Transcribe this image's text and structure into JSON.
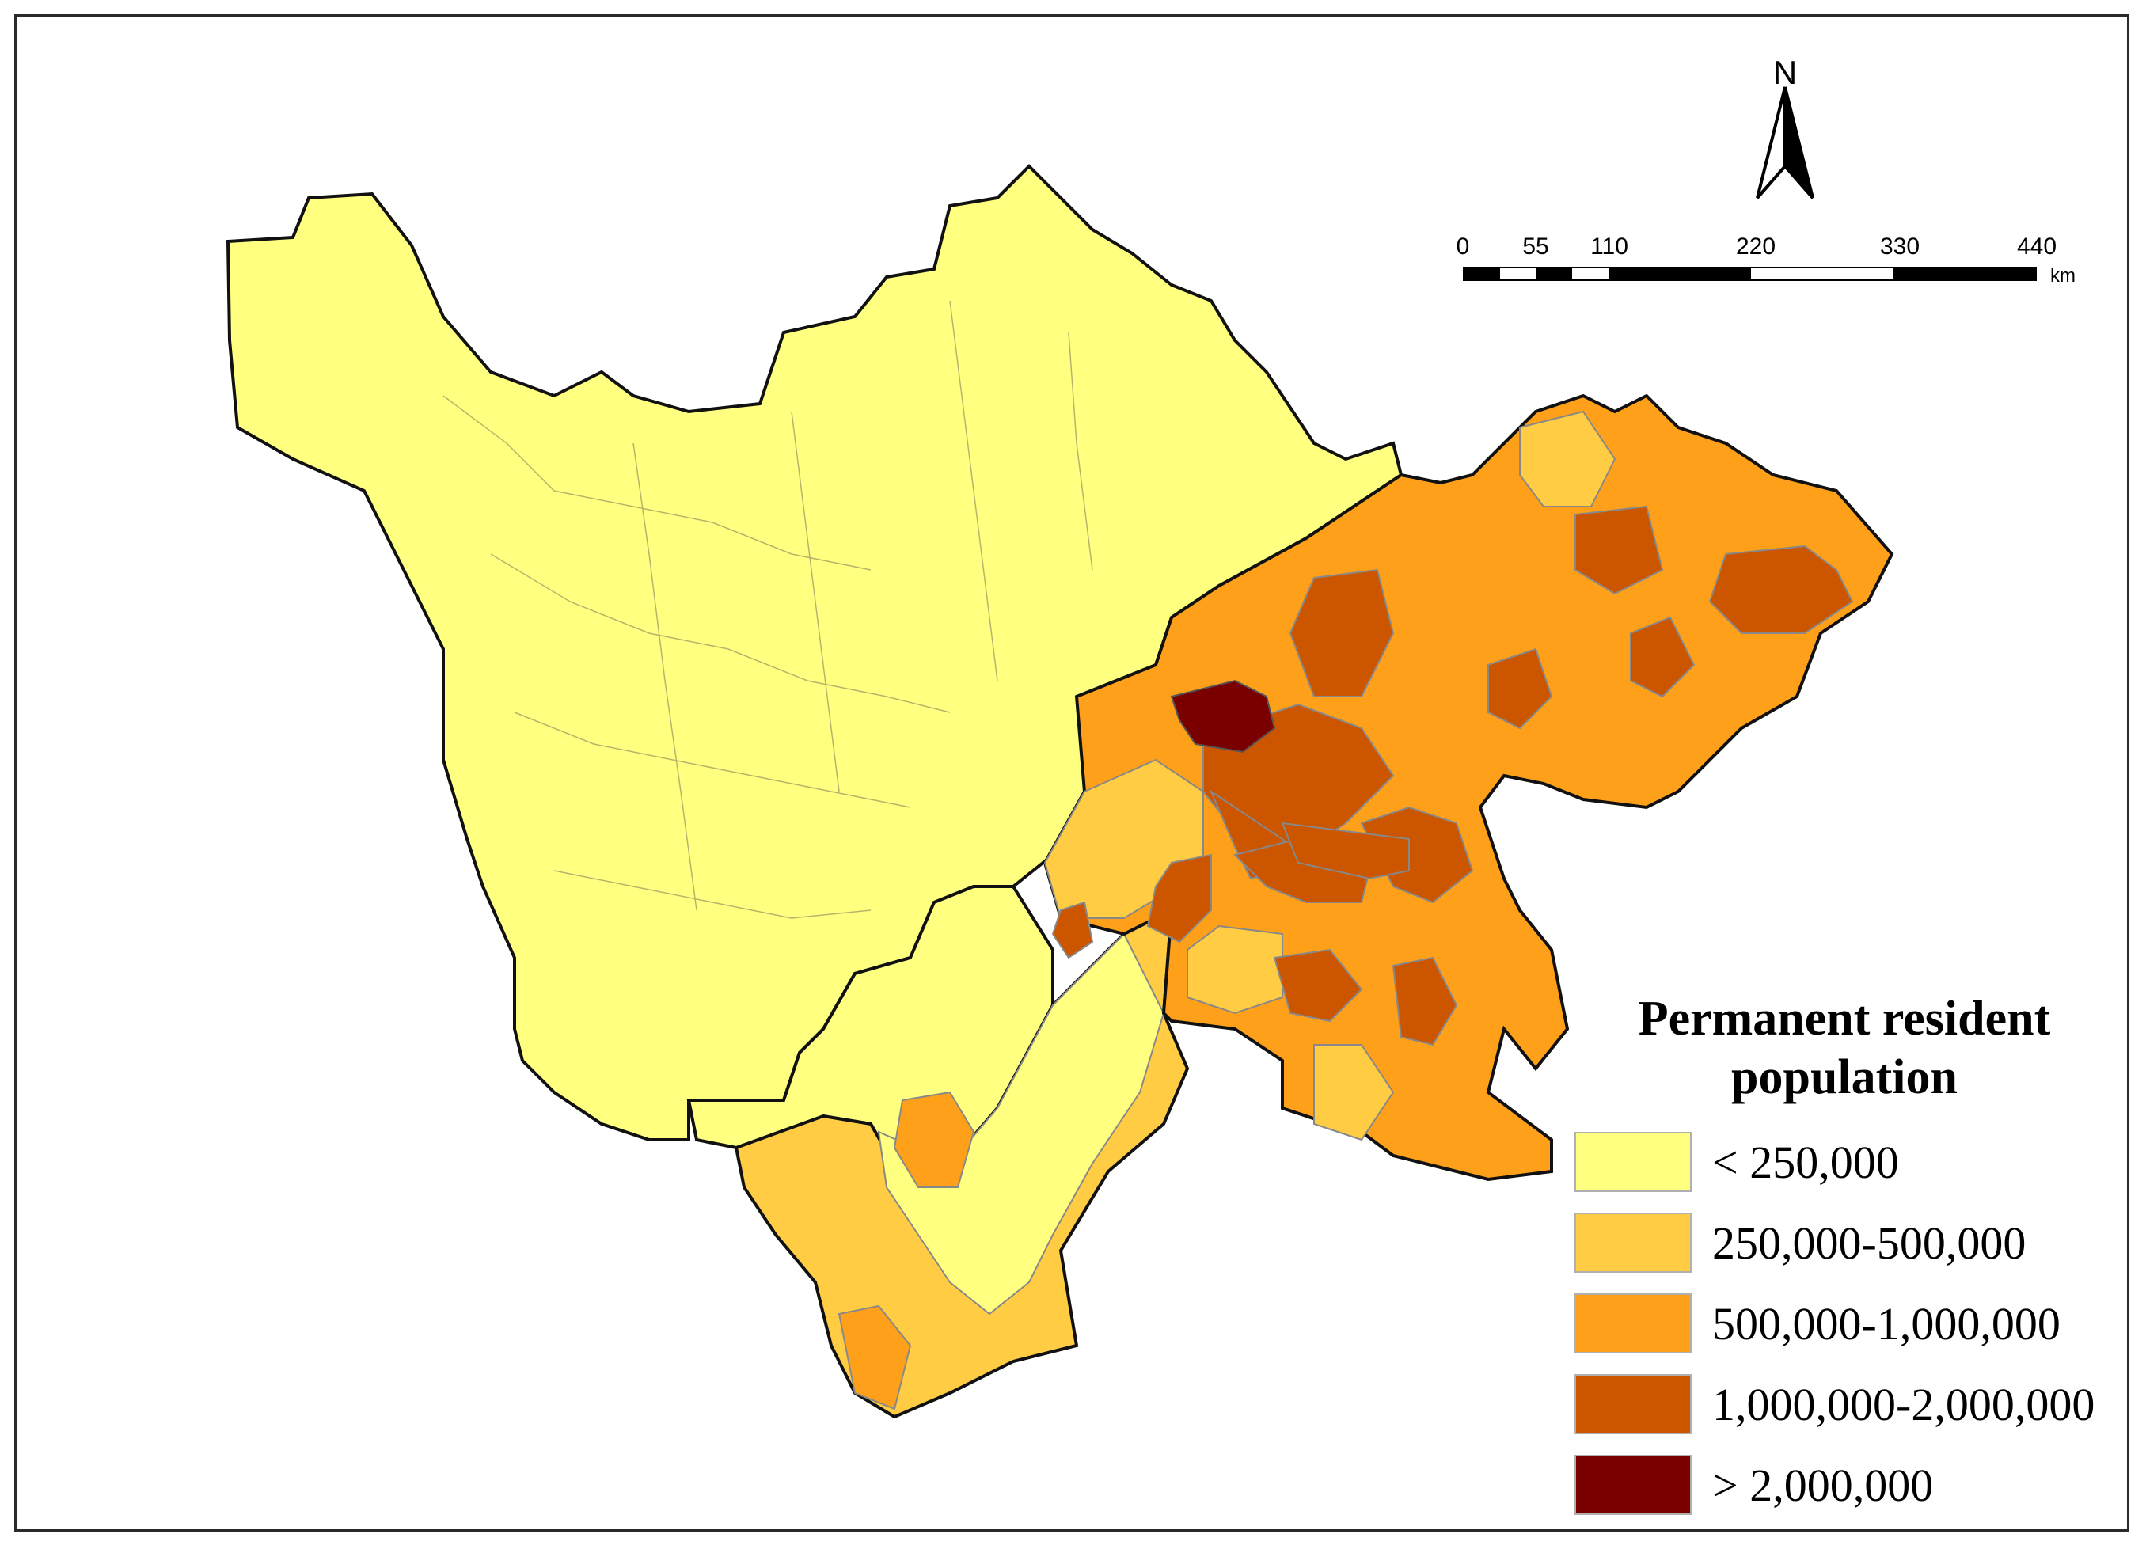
{
  "map": {
    "north_label": "N",
    "scale_ticks": [
      "0",
      "55",
      "110",
      "220",
      "330",
      "440"
    ],
    "scale_unit": "km",
    "legend_title_line1": "Permanent resident",
    "legend_title_line2": "population",
    "legend_items": [
      {
        "label": "< 250,000",
        "color": "#ffff80"
      },
      {
        "label": "250,000-500,000",
        "color": "#ffcc44"
      },
      {
        "label": "500,000-1,000,000",
        "color": "#ffa01a"
      },
      {
        "label": "1,000,000-2,000,000",
        "color": "#cc5500"
      },
      {
        "label": "> 2,000,000",
        "color": "#7a0000"
      }
    ]
  }
}
